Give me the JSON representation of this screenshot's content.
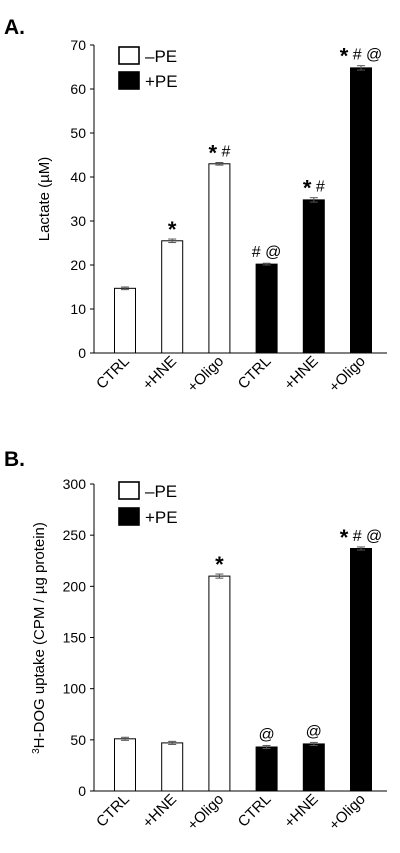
{
  "chart_data": [
    {
      "type": "bar",
      "panel_label": "A.",
      "ylabel": "Lactate (µM)",
      "ylim": [
        0,
        70
      ],
      "yticks": [
        "0",
        "10",
        "20",
        "30",
        "40",
        "50",
        "60",
        "70"
      ],
      "categories": [
        "CTRL",
        "+HNE",
        "+Oligo",
        "CTRL",
        "+HNE",
        "+Oligo"
      ],
      "series": [
        {
          "name": "–PE",
          "fill": "#ffffff",
          "values": [
            14.7,
            25.5,
            43.0,
            null,
            null,
            null
          ],
          "errors": [
            0.3,
            0.4,
            0.3,
            null,
            null,
            null
          ]
        },
        {
          "name": "+PE",
          "fill": "#000000",
          "values": [
            null,
            null,
            null,
            20.2,
            34.8,
            64.8
          ],
          "errors": [
            null,
            null,
            null,
            0.2,
            0.5,
            0.5
          ]
        }
      ],
      "significance": [
        {
          "star": "",
          "mark": ""
        },
        {
          "star": "*",
          "mark": ""
        },
        {
          "star": "*",
          "mark": "#"
        },
        {
          "star": "",
          "mark": "# @"
        },
        {
          "star": "*",
          "mark": "#"
        },
        {
          "star": "*",
          "mark": "# @"
        }
      ],
      "legend": [
        "–PE",
        "+PE"
      ],
      "legend_position": "top-left",
      "grid": false
    },
    {
      "type": "bar",
      "panel_label": "B.",
      "ylabel_sup": "3",
      "ylabel": "H-DOG uptake (CPM / µg protein)",
      "ylim": [
        0,
        300
      ],
      "yticks": [
        "0",
        "50",
        "100",
        "150",
        "200",
        "250",
        "300"
      ],
      "categories": [
        "CTRL",
        "+HNE",
        "+Oligo",
        "CTRL",
        "+HNE",
        "+Oligo"
      ],
      "series": [
        {
          "name": "–PE",
          "fill": "#ffffff",
          "values": [
            51,
            47,
            210,
            null,
            null,
            null
          ],
          "errors": [
            1.5,
            1.5,
            2,
            null,
            null,
            null
          ]
        },
        {
          "name": "+PE",
          "fill": "#000000",
          "values": [
            null,
            null,
            null,
            43,
            46,
            237
          ],
          "errors": [
            null,
            null,
            null,
            1.5,
            1.5,
            1.5
          ]
        }
      ],
      "significance": [
        {
          "star": "",
          "mark": ""
        },
        {
          "star": "",
          "mark": ""
        },
        {
          "star": "*",
          "mark": ""
        },
        {
          "star": "",
          "mark": "@"
        },
        {
          "star": "",
          "mark": "@"
        },
        {
          "star": "*",
          "mark": "# @"
        }
      ],
      "legend": [
        "–PE",
        "+PE"
      ],
      "legend_position": "top-left",
      "grid": false
    }
  ]
}
